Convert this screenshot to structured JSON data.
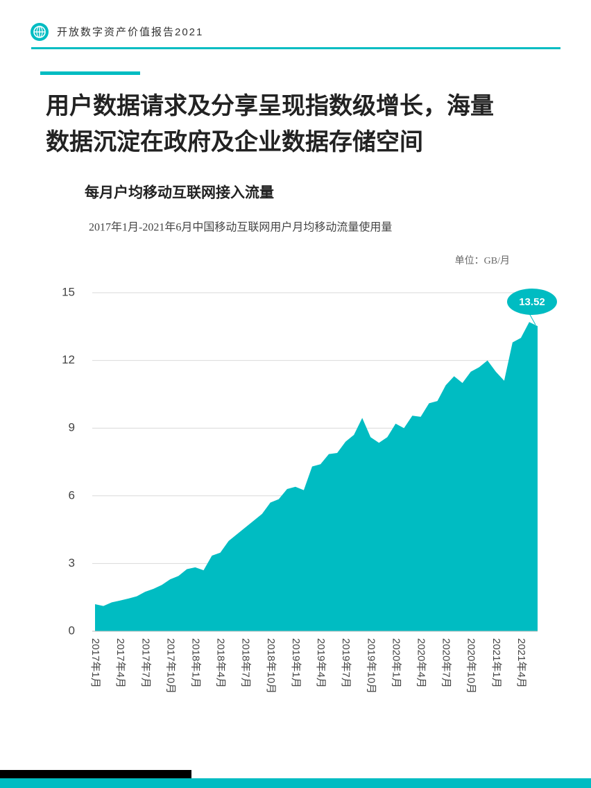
{
  "header": {
    "title": "开放数字资产价值报告2021"
  },
  "headline": [
    "用户数据请求及分享呈现指数级增长，海量",
    "数据沉淀在政府及企业数据存储空间"
  ],
  "chart_data": {
    "type": "area",
    "title": "每月户均移动互联网接入流量",
    "subtitle": "2017年1月-2021年6月中国移动互联网用户月均移动流量使用量",
    "unit": "单位：GB/月",
    "color": "#00bcc2",
    "categories": [
      "2017年1月",
      null,
      null,
      "2017年4月",
      null,
      null,
      "2017年7月",
      null,
      null,
      "2017年10月",
      null,
      null,
      "2018年1月",
      null,
      null,
      "2018年4月",
      null,
      null,
      "2018年7月",
      null,
      null,
      "2018年10月",
      null,
      null,
      "2019年1月",
      null,
      null,
      "2019年4月",
      null,
      null,
      "2019年7月",
      null,
      null,
      "2019年10月",
      null,
      null,
      "2020年1月",
      null,
      null,
      "2020年4月",
      null,
      null,
      "2020年7月",
      null,
      null,
      "2020年10月",
      null,
      null,
      "2021年1月",
      null,
      null,
      "2021年4月",
      null,
      null
    ],
    "values": [
      1.2,
      1.12,
      1.28,
      1.36,
      1.45,
      1.55,
      1.75,
      1.88,
      2.05,
      2.3,
      2.45,
      2.75,
      2.83,
      2.7,
      3.35,
      3.48,
      4.0,
      4.3,
      4.6,
      4.9,
      5.2,
      5.7,
      5.85,
      6.3,
      6.4,
      6.25,
      7.3,
      7.4,
      7.85,
      7.9,
      8.4,
      8.7,
      9.45,
      8.6,
      8.35,
      8.6,
      9.2,
      9.0,
      9.55,
      9.5,
      10.1,
      10.2,
      10.9,
      11.3,
      11.0,
      11.5,
      11.7,
      12.0,
      11.5,
      11.1,
      12.8,
      13.0,
      13.7,
      13.52
    ],
    "ylim": [
      0,
      15
    ],
    "yticks": [
      0,
      3,
      6,
      9,
      12,
      15
    ],
    "grid": true
  }
}
